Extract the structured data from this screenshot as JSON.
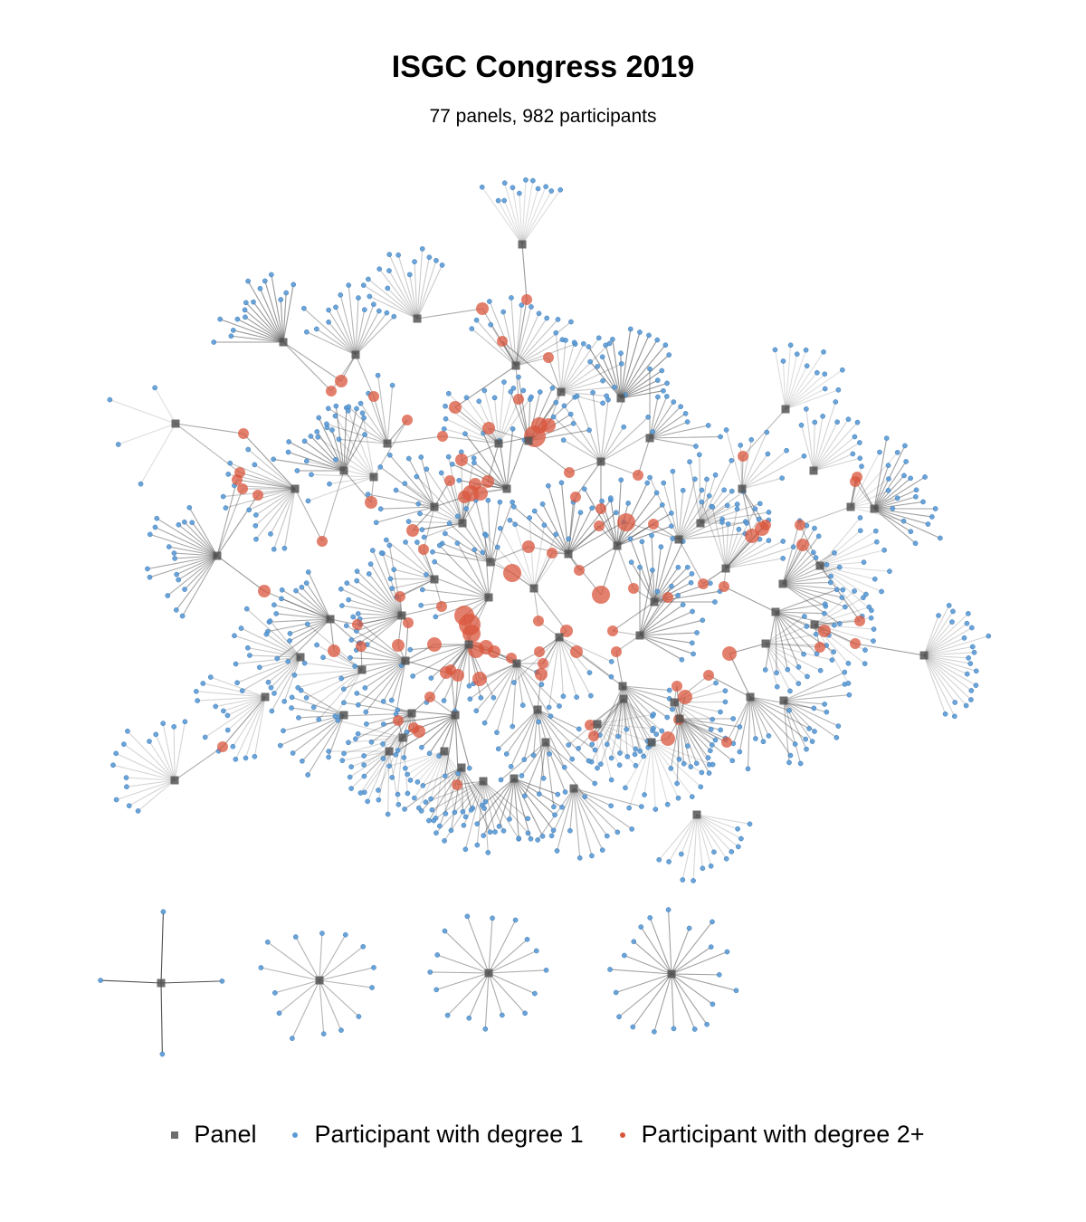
{
  "title": "ISGC Congress 2019",
  "subtitle": "77 panels, 982 participants",
  "colors": {
    "panel": "#555555",
    "participant_degree_1": "#5b9bd5",
    "participant_degree_2plus": "#d9553c",
    "edge": "#444444"
  },
  "legend": [
    {
      "label": "Panel",
      "shape": "square",
      "color": "#555555"
    },
    {
      "label": "Participant with degree 1",
      "shape": "circle",
      "color": "#5b9bd5"
    },
    {
      "label": "Participant with degree 2+",
      "shape": "circle",
      "color": "#d9553c"
    }
  ],
  "network": {
    "panels_count": 77,
    "participants_count": 982,
    "disconnected_components": 4,
    "component_leaf_counts": [
      4,
      14,
      16,
      20
    ]
  }
}
